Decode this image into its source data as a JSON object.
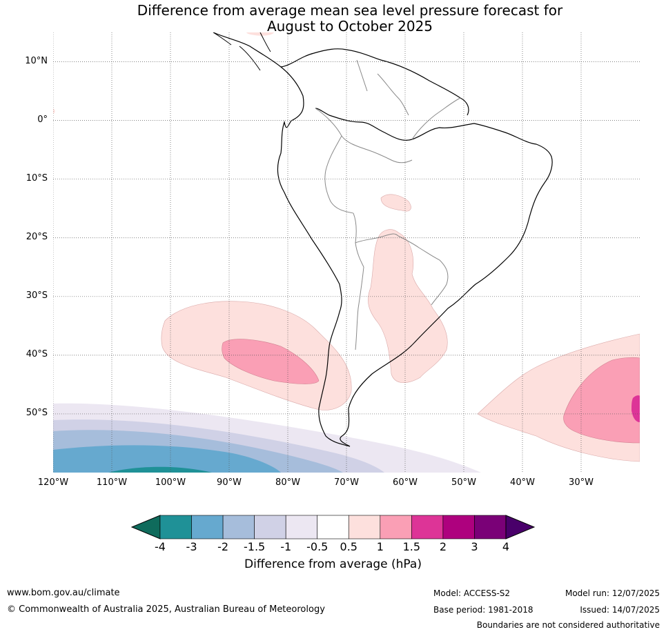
{
  "title_line1": "Difference from average mean sea level pressure forecast for",
  "title_line2": "August to October 2025",
  "map": {
    "lon_range": [
      -120,
      -20
    ],
    "lat_range": [
      -60,
      15
    ],
    "lat_ticks": [
      {
        "value": 10,
        "label": "10°N"
      },
      {
        "value": 0,
        "label": "0°"
      },
      {
        "value": -10,
        "label": "10°S"
      },
      {
        "value": -20,
        "label": "20°S"
      },
      {
        "value": -30,
        "label": "30°S"
      },
      {
        "value": -40,
        "label": "40°S"
      },
      {
        "value": -50,
        "label": "50°S"
      }
    ],
    "lon_ticks": [
      {
        "value": -120,
        "label": "120°W"
      },
      {
        "value": -110,
        "label": "110°W"
      },
      {
        "value": -100,
        "label": "100°W"
      },
      {
        "value": -90,
        "label": "90°W"
      },
      {
        "value": -80,
        "label": "80°W"
      },
      {
        "value": -70,
        "label": "70°W"
      },
      {
        "value": -60,
        "label": "60°W"
      },
      {
        "value": -50,
        "label": "50°W"
      },
      {
        "value": -40,
        "label": "40°W"
      },
      {
        "value": -30,
        "label": "30°W"
      }
    ],
    "gridlines": true
  },
  "colorbar": {
    "label": "Difference from average (hPa)",
    "tick_labels": [
      "-4",
      "-3",
      "-2",
      "-1.5",
      "-1",
      "-0.5",
      "0.5",
      "1",
      "1.5",
      "2",
      "3",
      "4"
    ],
    "colors": [
      "#0f6b5c",
      "#1f9197",
      "#66a9cf",
      "#a6bddb",
      "#d0d1e6",
      "#ece7f2",
      "#ffffff",
      "#fde0dd",
      "#fa9fb5",
      "#dd3497",
      "#ae017e",
      "#7a0177",
      "#49006a"
    ]
  },
  "footer": {
    "website": "www.bom.gov.au/climate",
    "copyright": "© Commonwealth of Australia 2025, Australian Bureau of Meteorology",
    "model": "Model: ACCESS-S2",
    "base_period": "Base period: 1981-2018",
    "model_run": "Model run: 12/07/2025",
    "issued": "Issued: 14/07/2025",
    "disclaimer": "Boundaries are not considered authoritative"
  }
}
